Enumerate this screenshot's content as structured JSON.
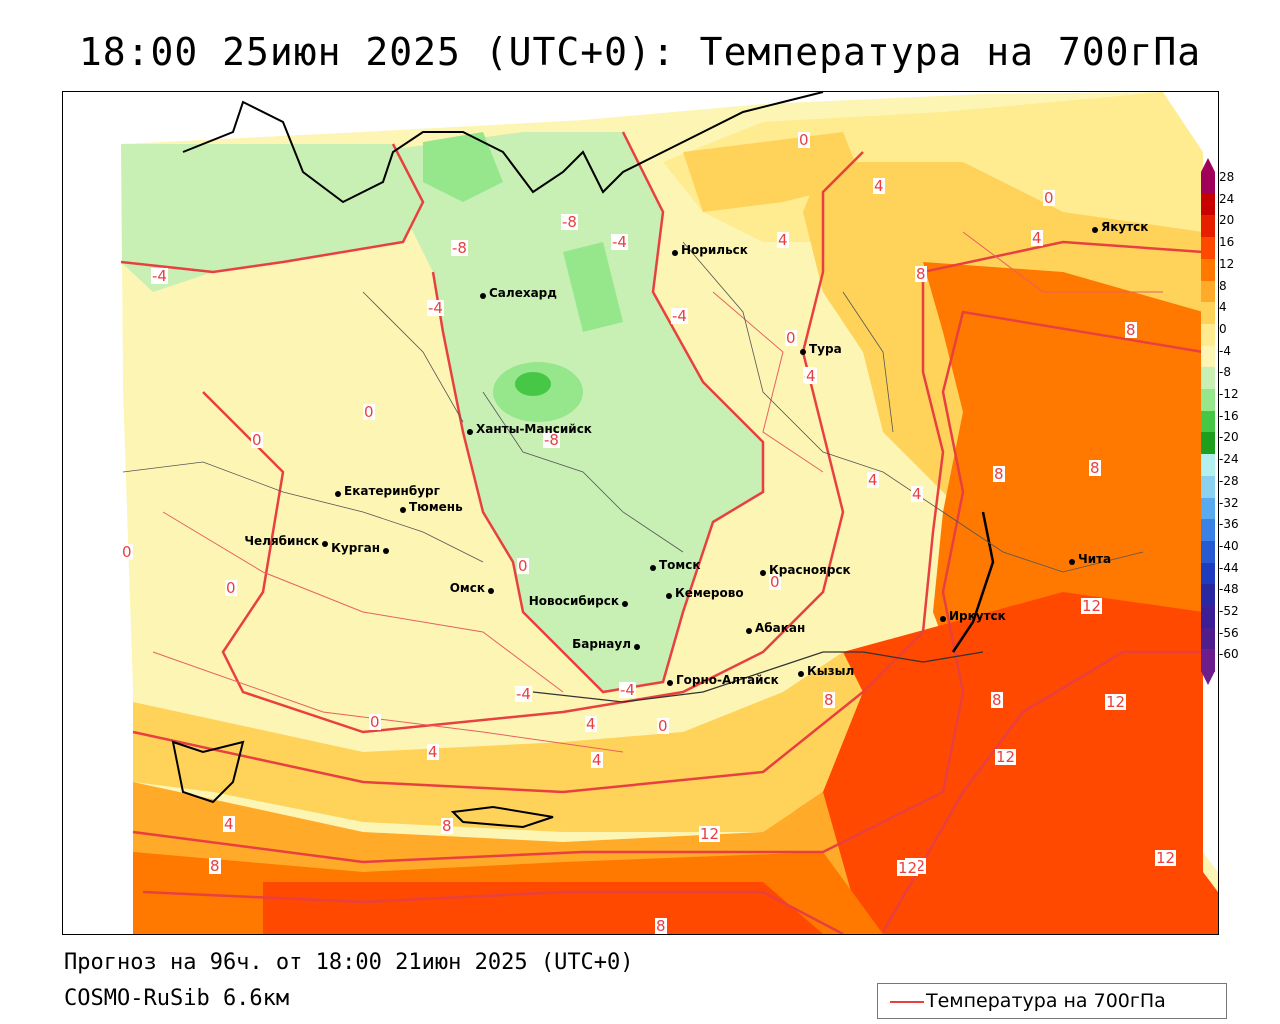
{
  "title": "18:00 25июн 2025 (UTC+0): Температура на 700гПа",
  "footer": {
    "forecast": "Прогноз на 96ч. от 18:00 21июн 2025 (UTC+0)",
    "model": "COSMO-RuSib 6.6км"
  },
  "legend": {
    "line_label": "Температура на 700гПа",
    "line_color": "#e84040"
  },
  "colorbar": {
    "ticks": [
      "28",
      "24",
      "20",
      "16",
      "12",
      "8",
      "4",
      "0",
      "-4",
      "-8",
      "-12",
      "-16",
      "-20",
      "-24",
      "-28",
      "-32",
      "-36",
      "-40",
      "-44",
      "-48",
      "-52",
      "-56",
      "-60"
    ],
    "colors": [
      "#a0005a",
      "#c80000",
      "#e81e00",
      "#ff4800",
      "#ff7800",
      "#ffaa28",
      "#ffd25a",
      "#ffeb90",
      "#fdf5b4",
      "#c8f0b4",
      "#96e68c",
      "#46c846",
      "#1ea01e",
      "#b4f0f0",
      "#8cd2f0",
      "#5aaaf0",
      "#3c82e6",
      "#285ad2",
      "#1e3cbe",
      "#2828a0",
      "#3c1e96",
      "#501e8c",
      "#6e1e8c"
    ]
  },
  "cities": [
    {
      "name": "Норильск"
    },
    {
      "name": "Якутск"
    },
    {
      "name": "Салехард"
    },
    {
      "name": "Тура"
    },
    {
      "name": "Ханты-Мансийск"
    },
    {
      "name": "Екатеринбург"
    },
    {
      "name": "Тюмень"
    },
    {
      "name": "Челябинск"
    },
    {
      "name": "Курган"
    },
    {
      "name": "Омск"
    },
    {
      "name": "Томск"
    },
    {
      "name": "Новосибирск"
    },
    {
      "name": "Кемерово"
    },
    {
      "name": "Красноярск"
    },
    {
      "name": "Барнаул"
    },
    {
      "name": "Абакан"
    },
    {
      "name": "Иркутск"
    },
    {
      "name": "Чита"
    },
    {
      "name": "Кызыл"
    },
    {
      "name": "Горно-Алтайск"
    }
  ],
  "contour_labels": [
    "0",
    "4",
    "0",
    "4",
    "4",
    "8",
    "-8",
    "-8",
    "-4",
    "-4",
    "-4",
    "-4",
    "0",
    "0",
    "0",
    "-8",
    "0",
    "0",
    "0",
    "4",
    "4",
    "8",
    "8",
    "-4",
    "0",
    "0",
    "4",
    "4",
    "8",
    "8",
    "4",
    "8",
    "8",
    "12",
    "12",
    "12",
    "12",
    "12",
    "12",
    "12",
    "8",
    "0",
    "4",
    "8",
    "4",
    "-4",
    "0",
    "4"
  ]
}
